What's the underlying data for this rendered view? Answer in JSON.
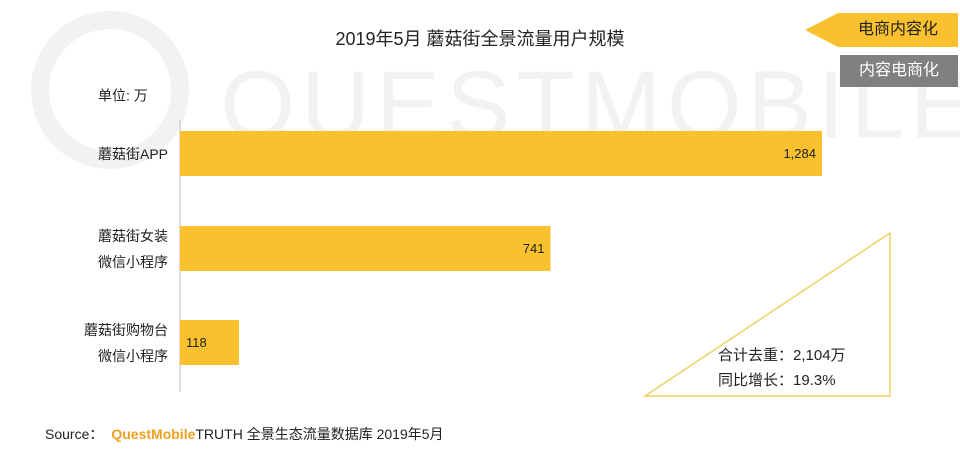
{
  "chart_data": {
    "type": "bar",
    "orientation": "horizontal",
    "title": "2019年5月 蘑菇街全景流量用户规模",
    "unit_label": "单位: 万",
    "categories": [
      "蘑菇街APP",
      "蘑菇街女装\n微信小程序",
      "蘑菇街购物台\n微信小程序"
    ],
    "values": [
      1284,
      741,
      118
    ],
    "value_labels": [
      "1,284",
      "741",
      "118"
    ],
    "color": "#f9c12e",
    "tabs": [
      "电商内容化",
      "内容电商化"
    ],
    "annotations": [
      "合计去重：2,104万",
      "同比增长：19.3%"
    ],
    "watermark": "QUESTMOBILE",
    "source": {
      "prefix": "Source：",
      "brand": "QuestMobile",
      "text": "TRUTH 全景生态流量数据库 2019年5月"
    }
  }
}
